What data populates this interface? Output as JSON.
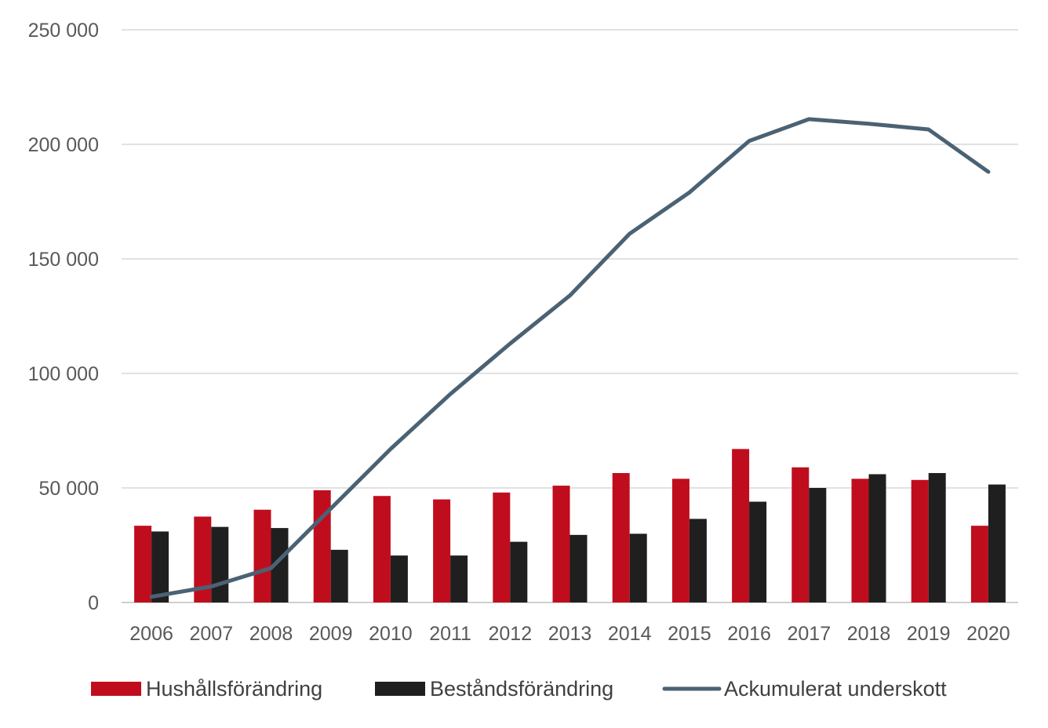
{
  "chart_data": {
    "type": "bar",
    "title": "",
    "xlabel": "",
    "ylabel": "",
    "categories": [
      "2006",
      "2007",
      "2008",
      "2009",
      "2010",
      "2011",
      "2012",
      "2013",
      "2014",
      "2015",
      "2016",
      "2017",
      "2018",
      "2019",
      "2020"
    ],
    "ylim": [
      0,
      250000
    ],
    "yticks": [
      0,
      50000,
      100000,
      150000,
      200000,
      250000
    ],
    "ytick_labels": [
      "0",
      "50 000",
      "100 000",
      "150 000",
      "200 000",
      "250 000"
    ],
    "grid": true,
    "legend_position": "bottom",
    "series": [
      {
        "name": "Hushållsförändring",
        "type": "bar",
        "color": "#C00D1E",
        "values": [
          33500,
          37500,
          40500,
          49000,
          46500,
          45000,
          48000,
          51000,
          56500,
          54000,
          67000,
          59000,
          54000,
          53500,
          33500
        ]
      },
      {
        "name": "Beståndsförändring",
        "type": "bar",
        "color": "#1F1F1F",
        "values": [
          31000,
          33000,
          32500,
          23000,
          20500,
          20500,
          26500,
          29500,
          30000,
          36500,
          44000,
          50000,
          56000,
          56500,
          51500
        ]
      },
      {
        "name": "Ackumulerat underskott",
        "type": "line",
        "color": "#4A6274",
        "values": [
          2500,
          7000,
          15000,
          41000,
          67000,
          91000,
          113000,
          134000,
          161000,
          179000,
          201500,
          211000,
          209000,
          206500,
          188000
        ]
      }
    ]
  }
}
